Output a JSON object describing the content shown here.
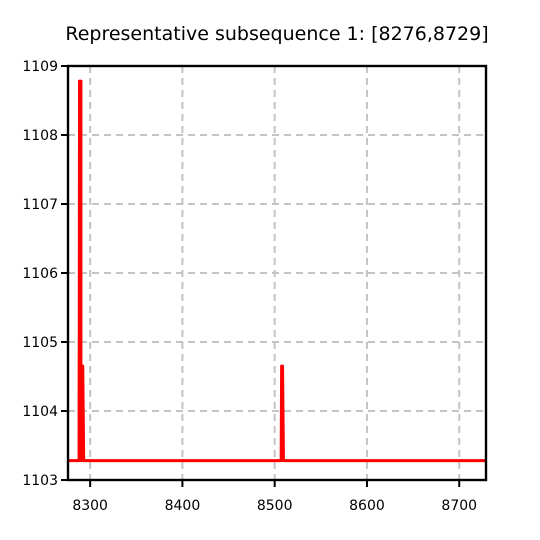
{
  "chart_data": {
    "type": "line",
    "title": "Representative subsequence 1: [8276,8729]",
    "xlabel": "",
    "ylabel": "",
    "xlim": [
      8276,
      8729
    ],
    "ylim": [
      1103,
      1109
    ],
    "x_ticks": [
      8300,
      8400,
      8500,
      8600,
      8700
    ],
    "x_tick_labels": [
      "8300",
      "8400",
      "8500",
      "8600",
      "8700"
    ],
    "y_ticks": [
      1103,
      1104,
      1105,
      1106,
      1107,
      1108,
      1109
    ],
    "y_tick_labels": [
      "1103",
      "1104",
      "1105",
      "1106",
      "1107",
      "1108",
      "1109"
    ],
    "grid": true,
    "series": [
      {
        "color": "#ff0000",
        "x": [
          8276,
          8288,
          8288,
          8288.5,
          8290,
          8290,
          8292,
          8292,
          8293,
          8293,
          8507,
          8507.5,
          8508.5,
          8509.5,
          8510,
          8729
        ],
        "y": [
          1103.28,
          1103.28,
          1103.28,
          1108.78,
          1108.78,
          1103.28,
          1104.65,
          1104.65,
          1103.28,
          1103.28,
          1103.28,
          1104.65,
          1104.65,
          1103.28,
          1103.28,
          1103.28
        ]
      }
    ]
  }
}
